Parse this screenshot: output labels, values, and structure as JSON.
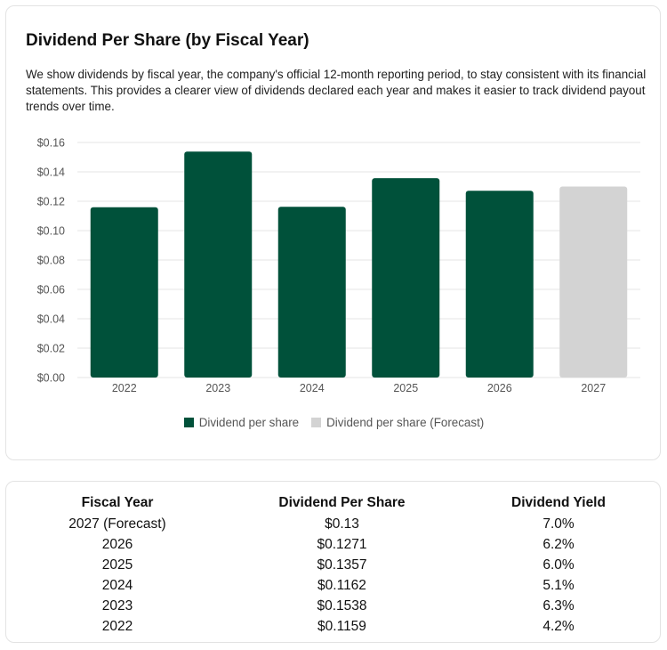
{
  "chart_card": {
    "title": "Dividend Per Share (by Fiscal Year)",
    "description": "We show dividends by fiscal year, the company's official 12-month reporting period, to stay consistent with its financial statements. This provides a clearer view of dividends declared each year and makes it easier to track dividend payout trends over time."
  },
  "chart_data": {
    "type": "bar",
    "title": "Dividend Per Share (by Fiscal Year)",
    "categories": [
      "2022",
      "2023",
      "2024",
      "2025",
      "2026",
      "2027"
    ],
    "series": [
      {
        "name": "Dividend per share",
        "values": [
          0.1159,
          0.1538,
          0.1162,
          0.1357,
          0.1271,
          null
        ],
        "color": "#00513a"
      },
      {
        "name": "Dividend per share (Forecast)",
        "values": [
          null,
          null,
          null,
          null,
          null,
          0.13
        ],
        "color": "#d3d3d3"
      }
    ],
    "ylim": [
      0,
      0.16
    ],
    "yticks": [
      "$0.16",
      "$0.14",
      "$0.12",
      "$0.10",
      "$0.08",
      "$0.06",
      "$0.04",
      "$0.02",
      "$0.00"
    ],
    "grid": true,
    "legend": "bottom"
  },
  "table": {
    "headers": [
      "Fiscal Year",
      "Dividend Per Share",
      "Dividend Yield"
    ],
    "rows": [
      [
        "2027 (Forecast)",
        "$0.13",
        "7.0%"
      ],
      [
        "2026",
        "$0.1271",
        "6.2%"
      ],
      [
        "2025",
        "$0.1357",
        "6.0%"
      ],
      [
        "2024",
        "$0.1162",
        "5.1%"
      ],
      [
        "2023",
        "$0.1538",
        "6.3%"
      ],
      [
        "2022",
        "$0.1159",
        "4.2%"
      ]
    ]
  }
}
